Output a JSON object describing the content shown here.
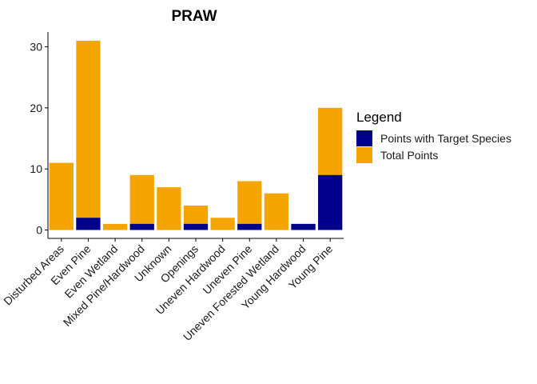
{
  "chart_data": {
    "type": "bar",
    "stacked": "overlay",
    "title": "PRAW",
    "xlabel": "",
    "ylabel": "",
    "ylim": [
      0,
      32
    ],
    "yticks": [
      0,
      10,
      20,
      30
    ],
    "grid": false,
    "legend_position": "right",
    "categories": [
      "Disturbed Areas",
      "Even Pine",
      "Even Wetland",
      "Mixed Pine/Hardwood",
      "Unknown",
      "Openings",
      "Uneven Hardwood",
      "Uneven Pine",
      "Uneven Forested Wetland",
      "Young Hardwood",
      "Young Pine"
    ],
    "series": [
      {
        "name": "Total Points",
        "color": "#F5A500",
        "values": [
          11,
          31,
          1,
          9,
          7,
          4,
          2,
          8,
          6,
          1,
          20
        ]
      },
      {
        "name": "Points with Target Species",
        "color": "#00008B",
        "values": [
          0,
          2,
          0,
          1,
          0,
          1,
          0,
          1,
          0,
          1,
          9
        ]
      }
    ],
    "legend": {
      "title": "Legend",
      "entries": [
        "Points with Target Species",
        "Total Points"
      ]
    }
  }
}
